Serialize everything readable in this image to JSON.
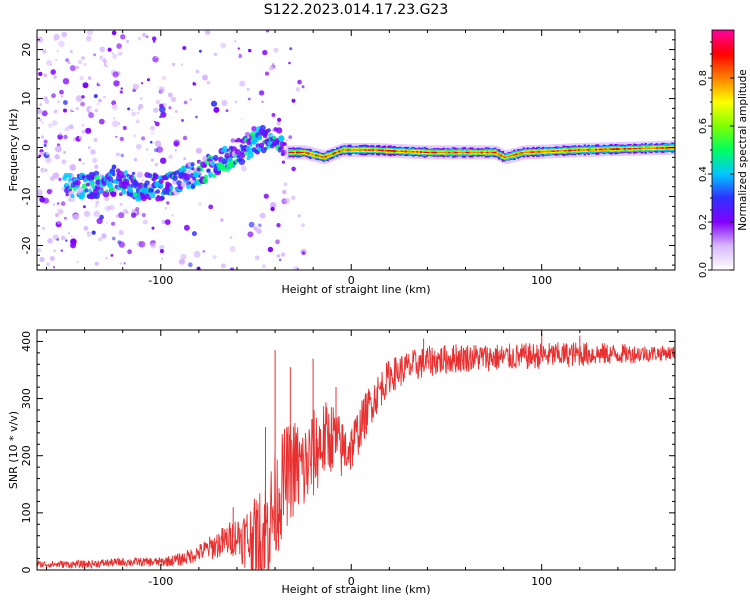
{
  "title": "S122.2023.014.17.23.G23",
  "chart_data": [
    {
      "type": "heatmap",
      "xlabel": "Height of straight line (km)",
      "ylabel": "Frequency (Hz)",
      "xlim": [
        -165,
        170
      ],
      "ylim": [
        -25,
        24
      ],
      "xticks": [
        -100,
        0,
        100
      ],
      "yticks": [
        -20,
        -10,
        0,
        10,
        20
      ],
      "colorbar": {
        "label": "Normalized spectral amplitude",
        "range": [
          0,
          1
        ],
        "ticks": [
          0.0,
          0.2,
          0.4,
          0.6,
          0.8
        ],
        "tick_labels": [
          "0.0",
          "0.2",
          "0.4",
          "0.6",
          "0.8"
        ],
        "colormap": [
          "#ffffff",
          "#d8b8ff",
          "#8000ff",
          "#3030ff",
          "#00c8ff",
          "#00ff60",
          "#80ff00",
          "#ffff00",
          "#ff8000",
          "#ff0000",
          "#ff00a0"
        ]
      },
      "ridge_frequency": [
        {
          "x": -145,
          "y": -8
        },
        {
          "x": -125,
          "y": -7
        },
        {
          "x": -110,
          "y": -8
        },
        {
          "x": -100,
          "y": -8
        },
        {
          "x": -90,
          "y": -7
        },
        {
          "x": -80,
          "y": -5
        },
        {
          "x": -70,
          "y": -3
        },
        {
          "x": -60,
          "y": -1
        },
        {
          "x": -50,
          "y": 1
        },
        {
          "x": -40,
          "y": 3
        },
        {
          "x": -35,
          "y": -1
        },
        {
          "x": -25,
          "y": -1
        },
        {
          "x": -15,
          "y": -2
        },
        {
          "x": -5,
          "y": -0.5
        },
        {
          "x": 10,
          "y": -0.5
        },
        {
          "x": 40,
          "y": -1
        },
        {
          "x": 75,
          "y": -1
        },
        {
          "x": 80,
          "y": -2
        },
        {
          "x": 90,
          "y": -1
        },
        {
          "x": 120,
          "y": -0.5
        },
        {
          "x": 170,
          "y": 0
        }
      ]
    },
    {
      "type": "line",
      "xlabel": "Height of straight line (km)",
      "ylabel": "SNR (10 * v/v)",
      "xlim": [
        -165,
        170
      ],
      "ylim": [
        0,
        420
      ],
      "xticks": [
        -100,
        0,
        100
      ],
      "yticks": [
        0,
        100,
        200,
        300,
        400
      ],
      "color": "#e83030",
      "trend": [
        {
          "x": -165,
          "y": 10
        },
        {
          "x": -140,
          "y": 10
        },
        {
          "x": -120,
          "y": 14
        },
        {
          "x": -100,
          "y": 14
        },
        {
          "x": -90,
          "y": 18
        },
        {
          "x": -80,
          "y": 30
        },
        {
          "x": -70,
          "y": 45
        },
        {
          "x": -60,
          "y": 60
        },
        {
          "x": -50,
          "y": 50
        },
        {
          "x": -45,
          "y": 65
        },
        {
          "x": -40,
          "y": 110
        },
        {
          "x": -35,
          "y": 160
        },
        {
          "x": -30,
          "y": 180
        },
        {
          "x": -25,
          "y": 175
        },
        {
          "x": -20,
          "y": 200
        },
        {
          "x": -15,
          "y": 225
        },
        {
          "x": -10,
          "y": 235
        },
        {
          "x": -5,
          "y": 210
        },
        {
          "x": 0,
          "y": 215
        },
        {
          "x": 10,
          "y": 290
        },
        {
          "x": 20,
          "y": 340
        },
        {
          "x": 30,
          "y": 355
        },
        {
          "x": 40,
          "y": 365
        },
        {
          "x": 60,
          "y": 372
        },
        {
          "x": 80,
          "y": 372
        },
        {
          "x": 100,
          "y": 375
        },
        {
          "x": 120,
          "y": 378
        },
        {
          "x": 140,
          "y": 378
        },
        {
          "x": 170,
          "y": 380
        }
      ],
      "spikes": [
        {
          "x": -62,
          "y": 110
        },
        {
          "x": -45,
          "y": 250
        },
        {
          "x": -40,
          "y": 385
        },
        {
          "x": -32,
          "y": 355
        },
        {
          "x": -20,
          "y": 370
        },
        {
          "x": -8,
          "y": 320
        },
        {
          "x": 38,
          "y": 405
        },
        {
          "x": 55,
          "y": 395
        },
        {
          "x": 100,
          "y": 415
        },
        {
          "x": 120,
          "y": 410
        }
      ],
      "noise_amplitude": [
        {
          "x": -165,
          "y": 6
        },
        {
          "x": -100,
          "y": 8
        },
        {
          "x": -80,
          "y": 15
        },
        {
          "x": -60,
          "y": 35
        },
        {
          "x": -45,
          "y": 100
        },
        {
          "x": -20,
          "y": 80
        },
        {
          "x": 0,
          "y": 45
        },
        {
          "x": 20,
          "y": 30
        },
        {
          "x": 60,
          "y": 25
        },
        {
          "x": 120,
          "y": 22
        },
        {
          "x": 170,
          "y": 12
        }
      ]
    }
  ]
}
